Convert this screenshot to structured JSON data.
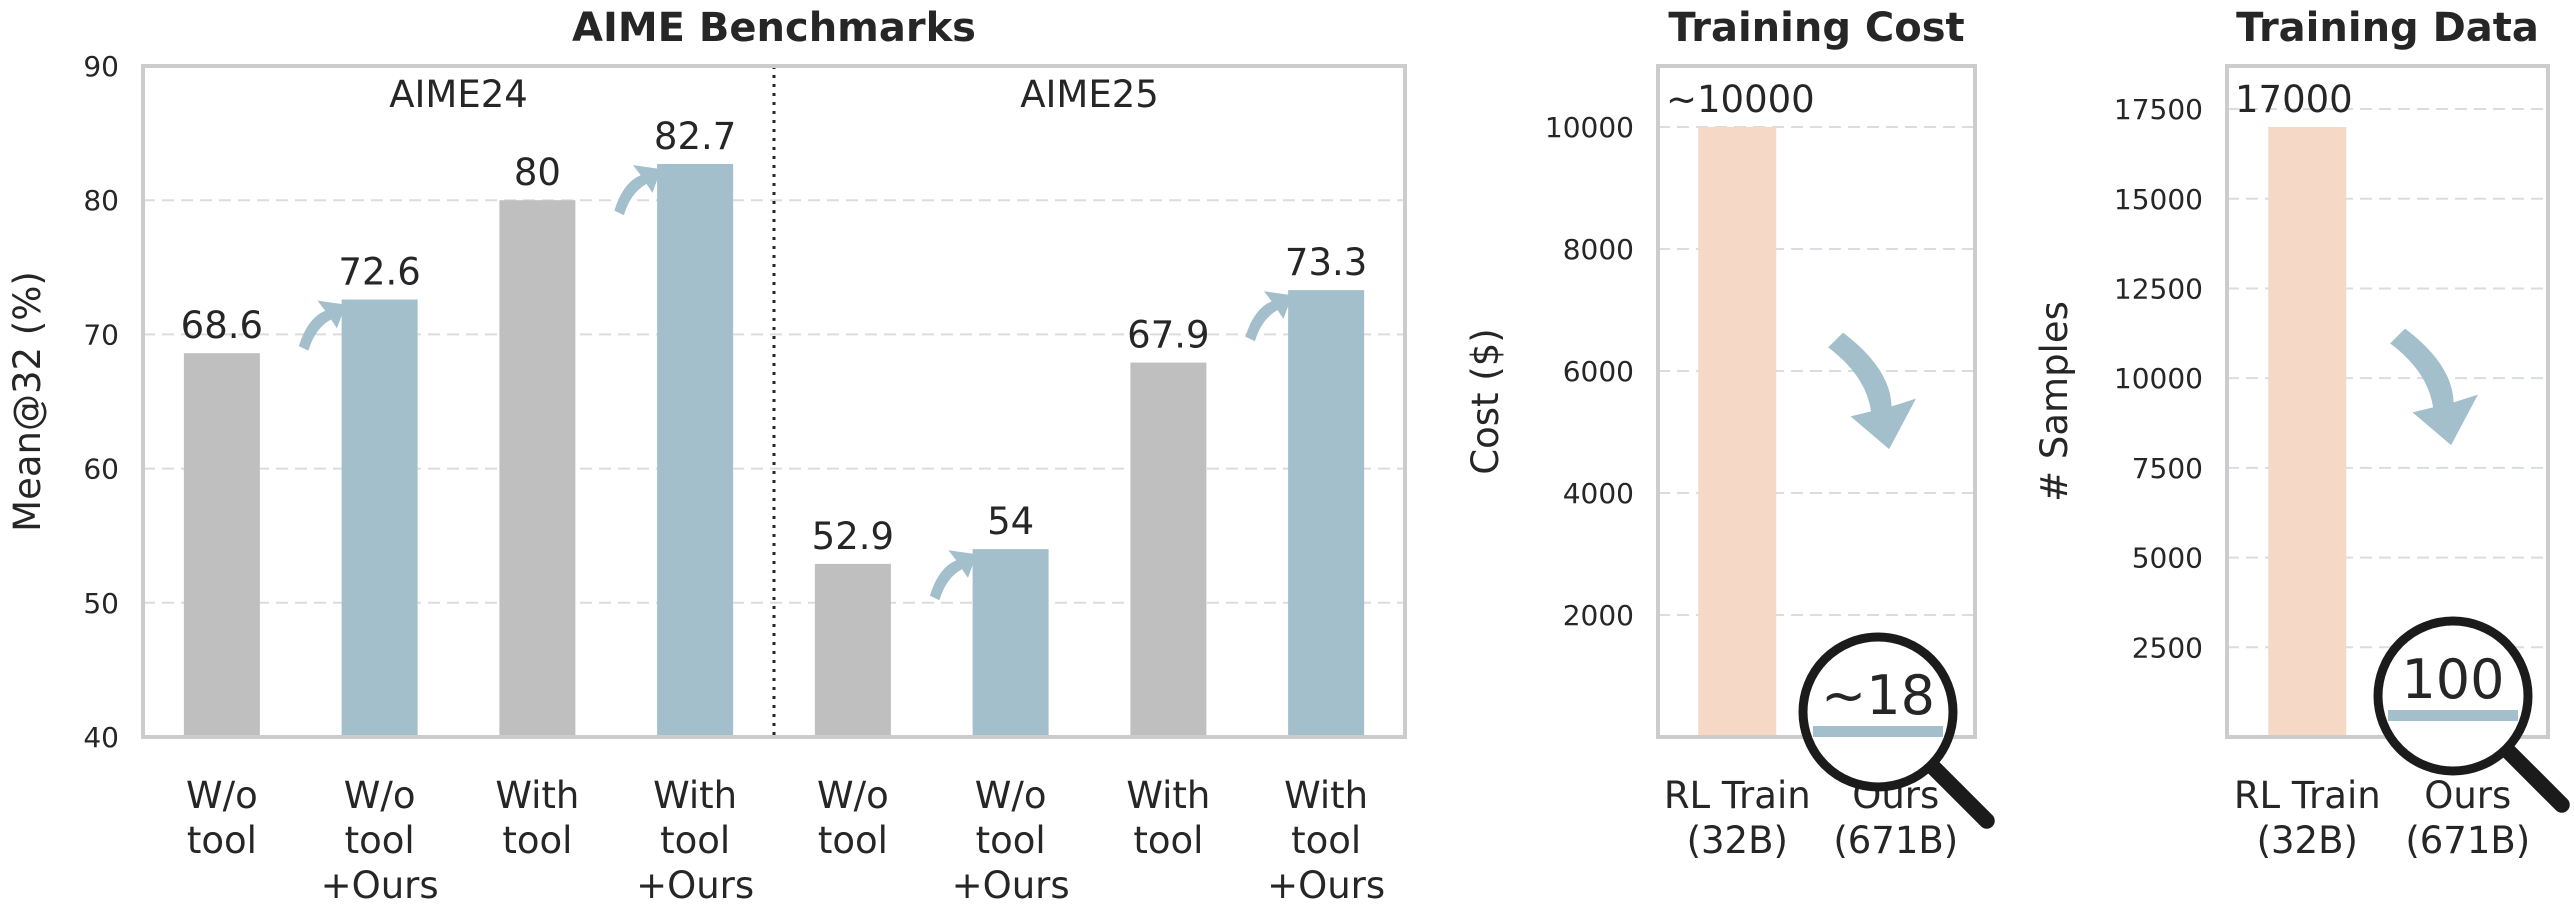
{
  "chart_data": [
    {
      "type": "bar",
      "title": "AIME Benchmarks",
      "ylabel": "Mean@32 (%)",
      "xlabel": "",
      "ylim": [
        40,
        90
      ],
      "yticks": [
        40,
        50,
        60,
        70,
        80,
        90
      ],
      "grid": true,
      "groups": [
        "AIME24",
        "AIME25"
      ],
      "categories": [
        "W/o\ntool",
        "W/o\ntool\n+Ours",
        "With\ntool",
        "With\ntool\n+Ours",
        "W/o\ntool",
        "W/o\ntool\n+Ours",
        "With\ntool",
        "With\ntool\n+Ours"
      ],
      "values": [
        68.6,
        72.6,
        80,
        82.7,
        52.9,
        54,
        67.9,
        73.3
      ],
      "value_labels": [
        "68.6",
        "72.6",
        "80",
        "82.7",
        "52.9",
        "54",
        "67.9",
        "73.3"
      ],
      "bar_colors": [
        "#bfbfbf",
        "#a3bfcb",
        "#bfbfbf",
        "#a3bfcb",
        "#bfbfbf",
        "#a3bfcb",
        "#bfbfbf",
        "#a3bfcb"
      ]
    },
    {
      "type": "bar",
      "title": "Training Cost",
      "ylabel": "Cost ($)",
      "xlabel": "",
      "ylim": [
        0,
        11000
      ],
      "yticks": [
        2000,
        4000,
        6000,
        8000,
        10000
      ],
      "grid": true,
      "categories": [
        "RL Train\n(32B)",
        "Ours\n(671B)"
      ],
      "values": [
        10000,
        18
      ],
      "value_labels": [
        "~10000",
        "~18"
      ],
      "bar_colors": [
        "#f5d9c6",
        "#a3bfcb"
      ]
    },
    {
      "type": "bar",
      "title": "Training Data",
      "ylabel": "# Samples",
      "xlabel": "",
      "ylim": [
        0,
        18700
      ],
      "yticks": [
        2500,
        5000,
        7500,
        10000,
        12500,
        15000,
        17500
      ],
      "grid": true,
      "categories": [
        "RL Train\n(32B)",
        "Ours\n(671B)"
      ],
      "values": [
        17000,
        100
      ],
      "value_labels": [
        "17000",
        "100"
      ],
      "bar_colors": [
        "#f5d9c6",
        "#a3bfcb"
      ]
    }
  ],
  "colors": {
    "baseline": "#bfbfbf",
    "ours": "#a3bfcb",
    "rl_train": "#f5d9c6",
    "frame": "#cccccc",
    "grid": "#d9dde2",
    "text": "#262626"
  }
}
